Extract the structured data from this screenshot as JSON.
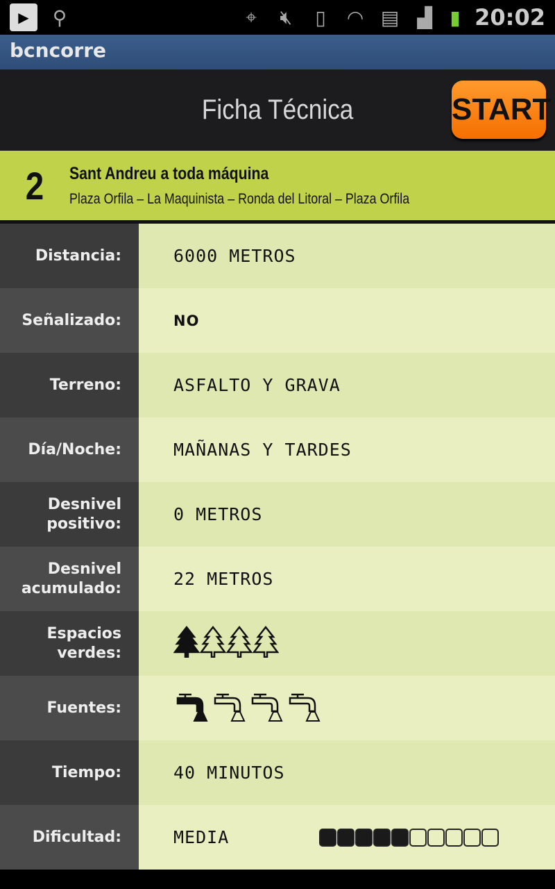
{
  "status_bar": {
    "time": "20:02",
    "icons": [
      "play-store-icon",
      "usb-icon",
      "gps-icon",
      "mute-icon",
      "vibrate-icon",
      "wifi-icon",
      "sd-card-icon",
      "signal-icon",
      "battery-charging-icon"
    ]
  },
  "app": {
    "title": "bcncorre"
  },
  "header": {
    "title": "Ficha Técnica",
    "start_label": "START",
    "start_color": "#f57f10"
  },
  "route": {
    "number": "2",
    "name": "Sant Andreu a toda máquina",
    "path": "Plaza Orfila – La Maquinista – Ronda del Litoral – Plaza Orfila",
    "color": "#bfd24a"
  },
  "rows": [
    {
      "label": "Distancia:",
      "value": "6000 METROS"
    },
    {
      "label": "Señalizado:",
      "value": "NO"
    },
    {
      "label": "Terreno:",
      "value": "ASFALTO Y GRAVA"
    },
    {
      "label": "Día/Noche:",
      "value": "MAÑANAS Y TARDES"
    },
    {
      "label": "Desnivel positivo:",
      "value": "0 METROS"
    },
    {
      "label": "Desnivel acumulado:",
      "value": "22 METROS"
    },
    {
      "label": "Espacios verdes:",
      "rating": 1,
      "max": 4,
      "icon": "tree-icon"
    },
    {
      "label": "Fuentes:",
      "rating": 1,
      "max": 4,
      "icon": "fountain-tap-icon"
    },
    {
      "label": "Tiempo:",
      "value": "40 MINUTOS"
    },
    {
      "label": "Dificultad:",
      "value": "MEDIA",
      "level": 5,
      "max": 10
    }
  ]
}
